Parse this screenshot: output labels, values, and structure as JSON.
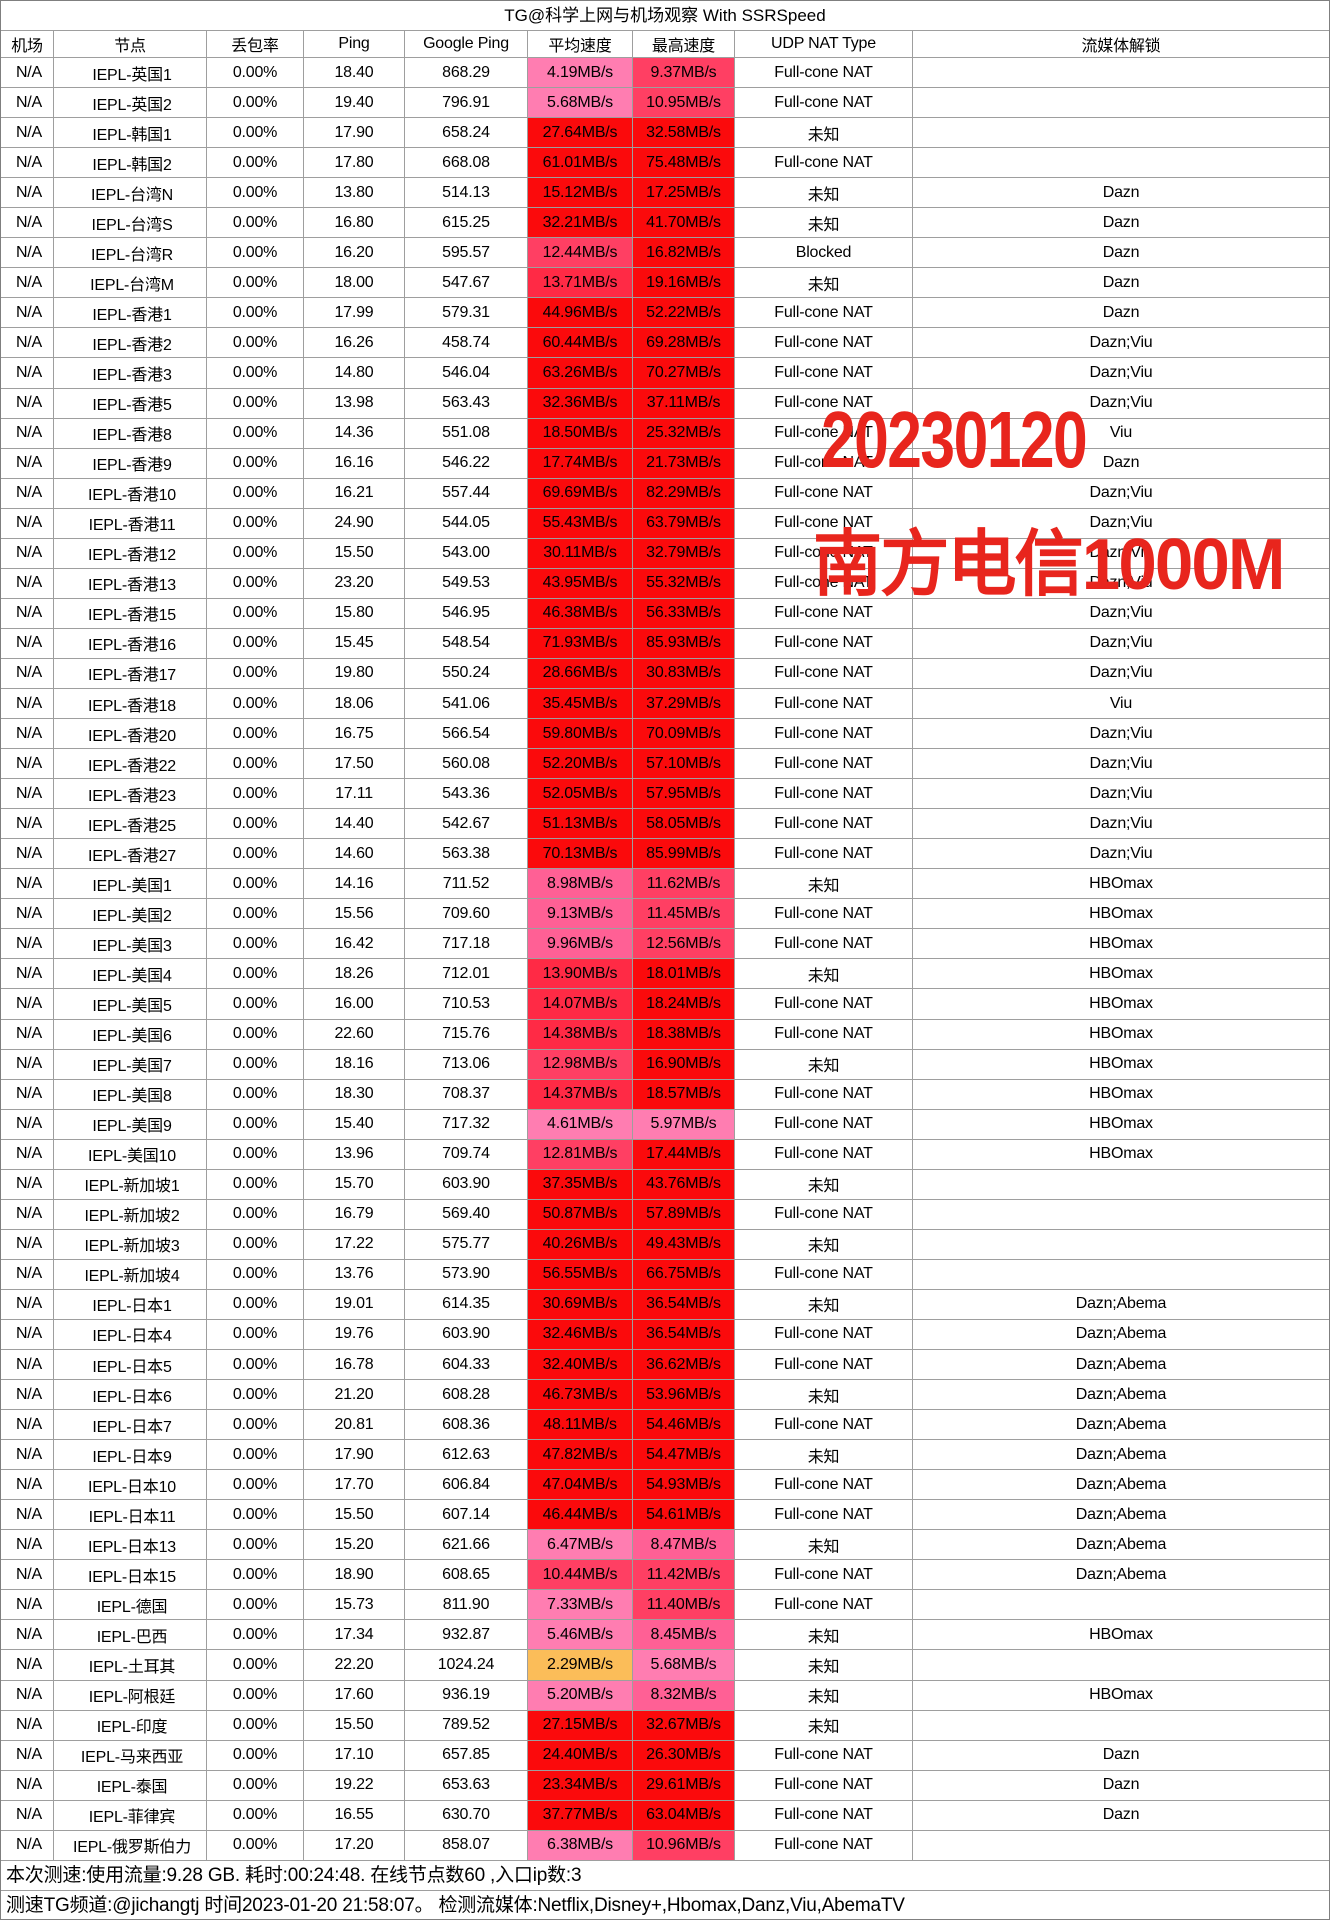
{
  "title": "TG@科学上网与机场观察 With SSRSpeed",
  "watermark": {
    "line1": "20230120",
    "line2": "南方电信1000M",
    "color": "#e8251d"
  },
  "columns": [
    "机场",
    "节点",
    "丢包率",
    "Ping",
    "Google Ping",
    "平均速度",
    "最高速度",
    "UDP NAT Type",
    "流媒体解锁"
  ],
  "speed_unit": "MB/s",
  "speed_colors": {
    "orange": "#fbbd59",
    "pink_light": "#ff7db1",
    "pink_mid": "#ff6095",
    "crimson": "#ff3f63",
    "red_mid": "#ff2a45",
    "red_full": "#fb0a0c"
  },
  "avg_thresholds": [
    3,
    8,
    10.2,
    13,
    15
  ],
  "max_thresholds": [
    3,
    6.5,
    9.2,
    12.6,
    15
  ],
  "rows": [
    [
      "N/A",
      "IEPL-英国1",
      "0.00%",
      "18.40",
      "868.29",
      4.19,
      9.37,
      "Full-cone NAT",
      ""
    ],
    [
      "N/A",
      "IEPL-英国2",
      "0.00%",
      "19.40",
      "796.91",
      5.68,
      10.95,
      "Full-cone NAT",
      ""
    ],
    [
      "N/A",
      "IEPL-韩国1",
      "0.00%",
      "17.90",
      "658.24",
      27.64,
      32.58,
      "未知",
      ""
    ],
    [
      "N/A",
      "IEPL-韩国2",
      "0.00%",
      "17.80",
      "668.08",
      61.01,
      75.48,
      "Full-cone NAT",
      ""
    ],
    [
      "N/A",
      "IEPL-台湾N",
      "0.00%",
      "13.80",
      "514.13",
      15.12,
      17.25,
      "未知",
      "Dazn"
    ],
    [
      "N/A",
      "IEPL-台湾S",
      "0.00%",
      "16.80",
      "615.25",
      32.21,
      41.7,
      "未知",
      "Dazn"
    ],
    [
      "N/A",
      "IEPL-台湾R",
      "0.00%",
      "16.20",
      "595.57",
      12.44,
      16.82,
      "Blocked",
      "Dazn"
    ],
    [
      "N/A",
      "IEPL-台湾M",
      "0.00%",
      "18.00",
      "547.67",
      13.71,
      19.16,
      "未知",
      "Dazn"
    ],
    [
      "N/A",
      "IEPL-香港1",
      "0.00%",
      "17.99",
      "579.31",
      44.96,
      52.22,
      "Full-cone NAT",
      "Dazn"
    ],
    [
      "N/A",
      "IEPL-香港2",
      "0.00%",
      "16.26",
      "458.74",
      60.44,
      69.28,
      "Full-cone NAT",
      "Dazn;Viu"
    ],
    [
      "N/A",
      "IEPL-香港3",
      "0.00%",
      "14.80",
      "546.04",
      63.26,
      70.27,
      "Full-cone NAT",
      "Dazn;Viu"
    ],
    [
      "N/A",
      "IEPL-香港5",
      "0.00%",
      "13.98",
      "563.43",
      32.36,
      37.11,
      "Full-cone NAT",
      "Dazn;Viu"
    ],
    [
      "N/A",
      "IEPL-香港8",
      "0.00%",
      "14.36",
      "551.08",
      18.5,
      25.32,
      "Full-cone NAT",
      "Viu"
    ],
    [
      "N/A",
      "IEPL-香港9",
      "0.00%",
      "16.16",
      "546.22",
      17.74,
      21.73,
      "Full-cone NAT",
      "Dazn"
    ],
    [
      "N/A",
      "IEPL-香港10",
      "0.00%",
      "16.21",
      "557.44",
      69.69,
      82.29,
      "Full-cone NAT",
      "Dazn;Viu"
    ],
    [
      "N/A",
      "IEPL-香港11",
      "0.00%",
      "24.90",
      "544.05",
      55.43,
      63.79,
      "Full-cone NAT",
      "Dazn;Viu"
    ],
    [
      "N/A",
      "IEPL-香港12",
      "0.00%",
      "15.50",
      "543.00",
      30.11,
      32.79,
      "Full-cone NAT",
      "Dazn;Viu"
    ],
    [
      "N/A",
      "IEPL-香港13",
      "0.00%",
      "23.20",
      "549.53",
      43.95,
      55.32,
      "Full-cone NAT",
      "Dazn;Viu"
    ],
    [
      "N/A",
      "IEPL-香港15",
      "0.00%",
      "15.80",
      "546.95",
      46.38,
      56.33,
      "Full-cone NAT",
      "Dazn;Viu"
    ],
    [
      "N/A",
      "IEPL-香港16",
      "0.00%",
      "15.45",
      "548.54",
      71.93,
      85.93,
      "Full-cone NAT",
      "Dazn;Viu"
    ],
    [
      "N/A",
      "IEPL-香港17",
      "0.00%",
      "19.80",
      "550.24",
      28.66,
      30.83,
      "Full-cone NAT",
      "Dazn;Viu"
    ],
    [
      "N/A",
      "IEPL-香港18",
      "0.00%",
      "18.06",
      "541.06",
      35.45,
      37.29,
      "Full-cone NAT",
      "Viu"
    ],
    [
      "N/A",
      "IEPL-香港20",
      "0.00%",
      "16.75",
      "566.54",
      59.8,
      70.09,
      "Full-cone NAT",
      "Dazn;Viu"
    ],
    [
      "N/A",
      "IEPL-香港22",
      "0.00%",
      "17.50",
      "560.08",
      52.2,
      57.1,
      "Full-cone NAT",
      "Dazn;Viu"
    ],
    [
      "N/A",
      "IEPL-香港23",
      "0.00%",
      "17.11",
      "543.36",
      52.05,
      57.95,
      "Full-cone NAT",
      "Dazn;Viu"
    ],
    [
      "N/A",
      "IEPL-香港25",
      "0.00%",
      "14.40",
      "542.67",
      51.13,
      58.05,
      "Full-cone NAT",
      "Dazn;Viu"
    ],
    [
      "N/A",
      "IEPL-香港27",
      "0.00%",
      "14.60",
      "563.38",
      70.13,
      85.99,
      "Full-cone NAT",
      "Dazn;Viu"
    ],
    [
      "N/A",
      "IEPL-美国1",
      "0.00%",
      "14.16",
      "711.52",
      8.98,
      11.62,
      "未知",
      "HBOmax"
    ],
    [
      "N/A",
      "IEPL-美国2",
      "0.00%",
      "15.56",
      "709.60",
      9.13,
      11.45,
      "Full-cone NAT",
      "HBOmax"
    ],
    [
      "N/A",
      "IEPL-美国3",
      "0.00%",
      "16.42",
      "717.18",
      9.96,
      12.56,
      "Full-cone NAT",
      "HBOmax"
    ],
    [
      "N/A",
      "IEPL-美国4",
      "0.00%",
      "18.26",
      "712.01",
      13.9,
      18.01,
      "未知",
      "HBOmax"
    ],
    [
      "N/A",
      "IEPL-美国5",
      "0.00%",
      "16.00",
      "710.53",
      14.07,
      18.24,
      "Full-cone NAT",
      "HBOmax"
    ],
    [
      "N/A",
      "IEPL-美国6",
      "0.00%",
      "22.60",
      "715.76",
      14.38,
      18.38,
      "Full-cone NAT",
      "HBOmax"
    ],
    [
      "N/A",
      "IEPL-美国7",
      "0.00%",
      "18.16",
      "713.06",
      12.98,
      16.9,
      "未知",
      "HBOmax"
    ],
    [
      "N/A",
      "IEPL-美国8",
      "0.00%",
      "18.30",
      "708.37",
      14.37,
      18.57,
      "Full-cone NAT",
      "HBOmax"
    ],
    [
      "N/A",
      "IEPL-美国9",
      "0.00%",
      "15.40",
      "717.32",
      4.61,
      5.97,
      "Full-cone NAT",
      "HBOmax"
    ],
    [
      "N/A",
      "IEPL-美国10",
      "0.00%",
      "13.96",
      "709.74",
      12.81,
      17.44,
      "Full-cone NAT",
      "HBOmax"
    ],
    [
      "N/A",
      "IEPL-新加坡1",
      "0.00%",
      "15.70",
      "603.90",
      37.35,
      43.76,
      "未知",
      ""
    ],
    [
      "N/A",
      "IEPL-新加坡2",
      "0.00%",
      "16.79",
      "569.40",
      50.87,
      57.89,
      "Full-cone NAT",
      ""
    ],
    [
      "N/A",
      "IEPL-新加坡3",
      "0.00%",
      "17.22",
      "575.77",
      40.26,
      49.43,
      "未知",
      ""
    ],
    [
      "N/A",
      "IEPL-新加坡4",
      "0.00%",
      "13.76",
      "573.90",
      56.55,
      66.75,
      "Full-cone NAT",
      ""
    ],
    [
      "N/A",
      "IEPL-日本1",
      "0.00%",
      "19.01",
      "614.35",
      30.69,
      36.54,
      "未知",
      "Dazn;Abema"
    ],
    [
      "N/A",
      "IEPL-日本4",
      "0.00%",
      "19.76",
      "603.90",
      32.46,
      36.54,
      "Full-cone NAT",
      "Dazn;Abema"
    ],
    [
      "N/A",
      "IEPL-日本5",
      "0.00%",
      "16.78",
      "604.33",
      32.4,
      36.62,
      "Full-cone NAT",
      "Dazn;Abema"
    ],
    [
      "N/A",
      "IEPL-日本6",
      "0.00%",
      "21.20",
      "608.28",
      46.73,
      53.96,
      "未知",
      "Dazn;Abema"
    ],
    [
      "N/A",
      "IEPL-日本7",
      "0.00%",
      "20.81",
      "608.36",
      48.11,
      54.46,
      "Full-cone NAT",
      "Dazn;Abema"
    ],
    [
      "N/A",
      "IEPL-日本9",
      "0.00%",
      "17.90",
      "612.63",
      47.82,
      54.47,
      "未知",
      "Dazn;Abema"
    ],
    [
      "N/A",
      "IEPL-日本10",
      "0.00%",
      "17.70",
      "606.84",
      47.04,
      54.93,
      "Full-cone NAT",
      "Dazn;Abema"
    ],
    [
      "N/A",
      "IEPL-日本11",
      "0.00%",
      "15.50",
      "607.14",
      46.44,
      54.61,
      "Full-cone NAT",
      "Dazn;Abema"
    ],
    [
      "N/A",
      "IEPL-日本13",
      "0.00%",
      "15.20",
      "621.66",
      6.47,
      8.47,
      "未知",
      "Dazn;Abema"
    ],
    [
      "N/A",
      "IEPL-日本15",
      "0.00%",
      "18.90",
      "608.65",
      10.44,
      11.42,
      "Full-cone NAT",
      "Dazn;Abema"
    ],
    [
      "N/A",
      "IEPL-德国",
      "0.00%",
      "15.73",
      "811.90",
      7.33,
      11.4,
      "Full-cone NAT",
      ""
    ],
    [
      "N/A",
      "IEPL-巴西",
      "0.00%",
      "17.34",
      "932.87",
      5.46,
      8.45,
      "未知",
      "HBOmax"
    ],
    [
      "N/A",
      "IEPL-土耳其",
      "0.00%",
      "22.20",
      "1024.24",
      2.29,
      5.68,
      "未知",
      ""
    ],
    [
      "N/A",
      "IEPL-阿根廷",
      "0.00%",
      "17.60",
      "936.19",
      5.2,
      8.32,
      "未知",
      "HBOmax"
    ],
    [
      "N/A",
      "IEPL-印度",
      "0.00%",
      "15.50",
      "789.52",
      27.15,
      32.67,
      "未知",
      ""
    ],
    [
      "N/A",
      "IEPL-马来西亚",
      "0.00%",
      "17.10",
      "657.85",
      24.4,
      26.3,
      "Full-cone NAT",
      "Dazn"
    ],
    [
      "N/A",
      "IEPL-泰国",
      "0.00%",
      "19.22",
      "653.63",
      23.34,
      29.61,
      "Full-cone NAT",
      "Dazn"
    ],
    [
      "N/A",
      "IEPL-菲律宾",
      "0.00%",
      "16.55",
      "630.70",
      37.77,
      63.04,
      "Full-cone NAT",
      "Dazn"
    ],
    [
      "N/A",
      "IEPL-俄罗斯伯力",
      "0.00%",
      "17.20",
      "858.07",
      6.38,
      10.96,
      "Full-cone NAT",
      ""
    ]
  ],
  "footer": {
    "summary": "本次测速:使用流量:9.28 GB. 耗时:00:24:48. 在线节点数60 ,入口ip数:3",
    "channel": "测速TG频道:@jichangtj 时间2023-01-20 21:58:07。 检测流媒体:Netflix,Disney+,Hbomax,Danz,Viu,AbemaTV"
  }
}
